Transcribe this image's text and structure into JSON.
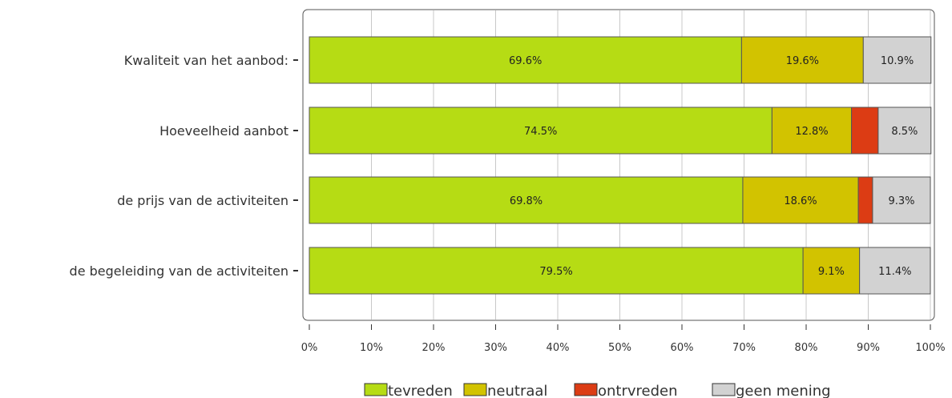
{
  "chart_data": {
    "type": "bar",
    "orientation": "horizontal",
    "stacked": true,
    "categories": [
      "Kwaliteit van het aanbod:",
      "Hoeveelheid aanbot",
      "de prijs van de activiteiten",
      "de begeleiding van de activiteiten"
    ],
    "series": [
      {
        "name": "tevreden",
        "color": "#b6dc14",
        "values": [
          69.6,
          74.5,
          69.8,
          79.5
        ],
        "labels": [
          "69.6%",
          "74.5%",
          "69.8%",
          "79.5%"
        ]
      },
      {
        "name": "neutraal",
        "color": "#d2c300",
        "values": [
          19.6,
          12.8,
          18.6,
          9.1
        ],
        "labels": [
          "19.6%",
          "12.8%",
          "18.6%",
          "9.1%"
        ]
      },
      {
        "name": "ontrvreden",
        "color": "#dc3c14",
        "values": [
          0,
          4.3,
          2.3,
          0
        ],
        "labels": [
          "",
          "",
          "",
          ""
        ]
      },
      {
        "name": "geen mening",
        "color": "#d2d2d2",
        "values": [
          10.9,
          8.5,
          9.3,
          11.4
        ],
        "labels": [
          "10.9%",
          "8.5%",
          "9.3%",
          "11.4%"
        ]
      }
    ],
    "xlim": [
      0,
      100
    ],
    "xticks": [
      "0%",
      "10%",
      "20%",
      "30%",
      "40%",
      "50%",
      "60%",
      "70%",
      "80%",
      "90%",
      "100%"
    ],
    "grid": true,
    "legend_position": "bottom"
  }
}
